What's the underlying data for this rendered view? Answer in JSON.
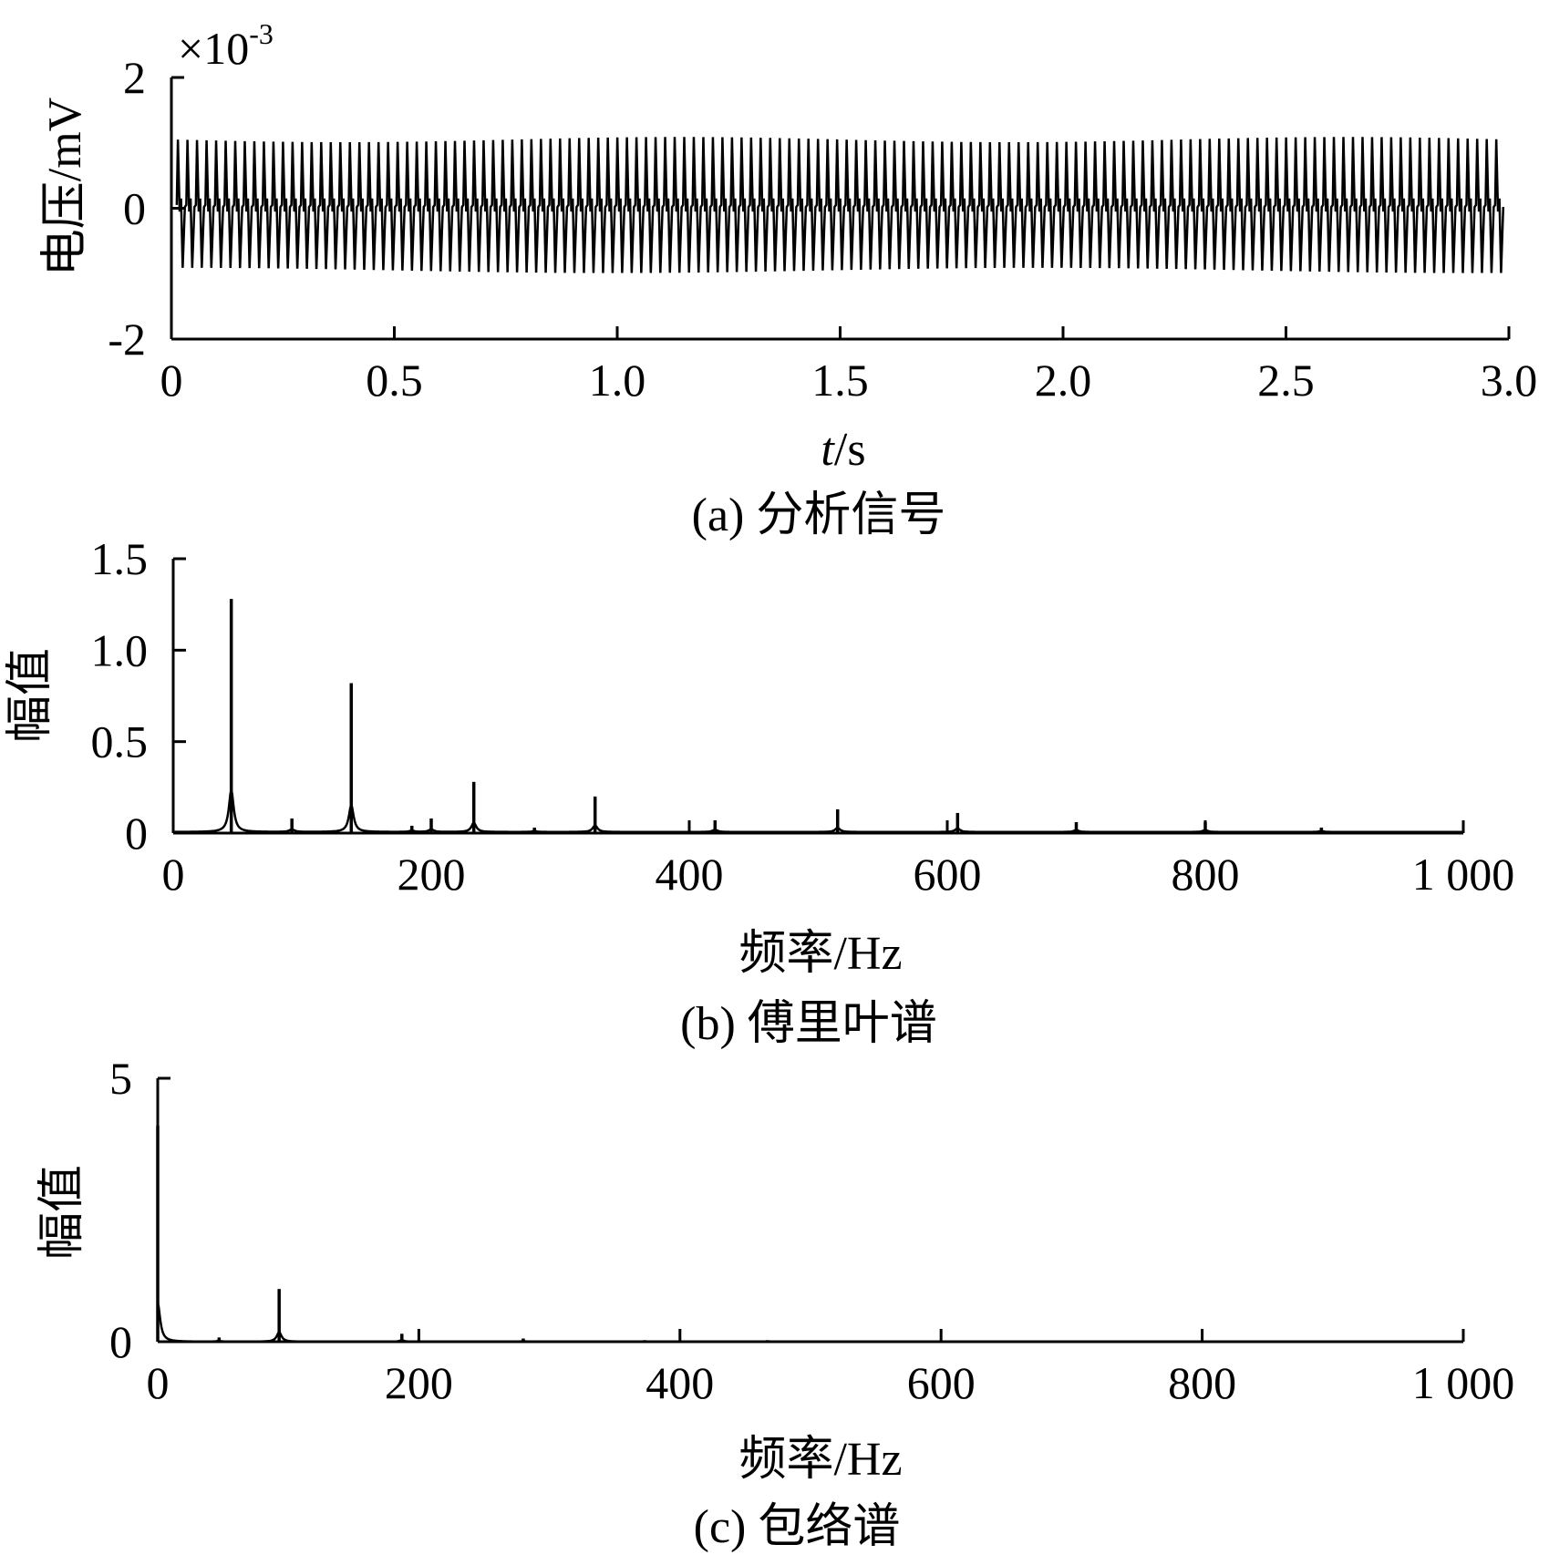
{
  "chart_data": [
    {
      "id": "a",
      "type": "line",
      "caption": "(a) 分析信号",
      "xlabel_italic": "t",
      "xlabel_rest": "/s",
      "ylabel": "电压/mV",
      "y_multiplier": "×10",
      "y_multiplier_exp": "-3",
      "xlim": [
        0,
        3.0
      ],
      "ylim": [
        -2,
        2
      ],
      "x_ticks": [
        0,
        0.5,
        1.0,
        1.5,
        2.0,
        2.5,
        3.0
      ],
      "x_tick_labels": [
        "0",
        "0.5",
        "1.0",
        "1.5",
        "2.0",
        "2.5",
        "3.0"
      ],
      "y_ticks": [
        -2,
        0,
        2
      ],
      "y_tick_labels": [
        "-2",
        "0",
        "2"
      ],
      "signal": {
        "description_free": true,
        "duration": 3.0,
        "cycles": 140,
        "peak_max": 1.05,
        "peak_min": -0.95,
        "secondary_peak": 0.15
      }
    },
    {
      "id": "b",
      "type": "line",
      "caption": "(b) 傅里叶谱",
      "xlabel": "频率/Hz",
      "ylabel": "幅值",
      "xlim": [
        0,
        1000
      ],
      "ylim": [
        0,
        1.5
      ],
      "x_ticks": [
        0,
        200,
        400,
        600,
        800,
        1000
      ],
      "x_tick_labels": [
        "0",
        "200",
        "400",
        "600",
        "800",
        "1 000"
      ],
      "y_ticks": [
        0,
        0.5,
        1.0,
        1.5
      ],
      "y_tick_labels": [
        "0",
        "0.5",
        "1.0",
        "1.5"
      ],
      "peaks": [
        {
          "x": 45,
          "y": 1.28
        },
        {
          "x": 92,
          "y": 0.08
        },
        {
          "x": 138,
          "y": 0.82
        },
        {
          "x": 185,
          "y": 0.04
        },
        {
          "x": 200,
          "y": 0.08
        },
        {
          "x": 233,
          "y": 0.28
        },
        {
          "x": 280,
          "y": 0.03
        },
        {
          "x": 327,
          "y": 0.2
        },
        {
          "x": 420,
          "y": 0.07
        },
        {
          "x": 515,
          "y": 0.13
        },
        {
          "x": 608,
          "y": 0.11
        },
        {
          "x": 700,
          "y": 0.06
        },
        {
          "x": 800,
          "y": 0.06
        },
        {
          "x": 890,
          "y": 0.03
        }
      ]
    },
    {
      "id": "c",
      "type": "line",
      "caption": "(c) 包络谱",
      "xlabel": "频率/Hz",
      "ylabel": "幅值",
      "xlim": [
        0,
        1000
      ],
      "ylim": [
        0,
        5
      ],
      "x_ticks": [
        0,
        200,
        400,
        600,
        800,
        1000
      ],
      "x_tick_labels": [
        "0",
        "200",
        "400",
        "600",
        "800",
        "1 000"
      ],
      "y_ticks": [
        0,
        5
      ],
      "y_tick_labels": [
        "0",
        "5"
      ],
      "peaks": [
        {
          "x": 0,
          "y": 4.1
        },
        {
          "x": 47,
          "y": 0.08
        },
        {
          "x": 93,
          "y": 1.0
        },
        {
          "x": 187,
          "y": 0.15
        },
        {
          "x": 280,
          "y": 0.06
        },
        {
          "x": 373,
          "y": 0.03
        },
        {
          "x": 467,
          "y": 0.03
        },
        {
          "x": 560,
          "y": 0.02
        },
        {
          "x": 653,
          "y": 0.02
        }
      ]
    }
  ]
}
